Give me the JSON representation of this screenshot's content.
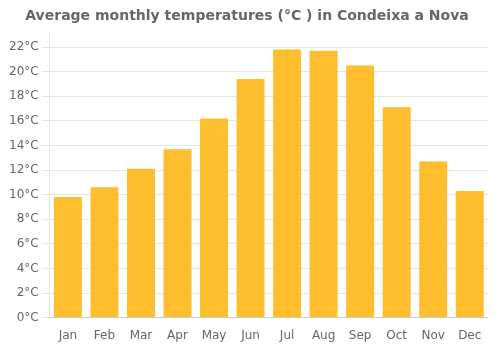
{
  "chart_data": {
    "type": "bar",
    "title": "Average monthly temperatures (°C ) in Condeixa a Nova",
    "categories": [
      "Jan",
      "Feb",
      "Mar",
      "Apr",
      "May",
      "Jun",
      "Jul",
      "Aug",
      "Sep",
      "Oct",
      "Nov",
      "Dec"
    ],
    "values": [
      9.8,
      10.6,
      12.1,
      13.7,
      16.2,
      19.4,
      21.8,
      21.7,
      20.5,
      17.1,
      12.7,
      10.3
    ],
    "color": "#FFBE2D",
    "ylim": [
      0,
      23
    ],
    "yticks": [
      {
        "value": 0,
        "label": "0°C"
      },
      {
        "value": 2,
        "label": "2°C"
      },
      {
        "value": 4,
        "label": "4°C"
      },
      {
        "value": 6,
        "label": "6°C"
      },
      {
        "value": 8,
        "label": "8°C"
      },
      {
        "value": 10,
        "label": "10°C"
      },
      {
        "value": 12,
        "label": "12°C"
      },
      {
        "value": 14,
        "label": "14°C"
      },
      {
        "value": 16,
        "label": "16°C"
      },
      {
        "value": 18,
        "label": "18°C"
      },
      {
        "value": 20,
        "label": "20°C"
      },
      {
        "value": 22,
        "label": "22°C"
      }
    ],
    "grid": true
  }
}
